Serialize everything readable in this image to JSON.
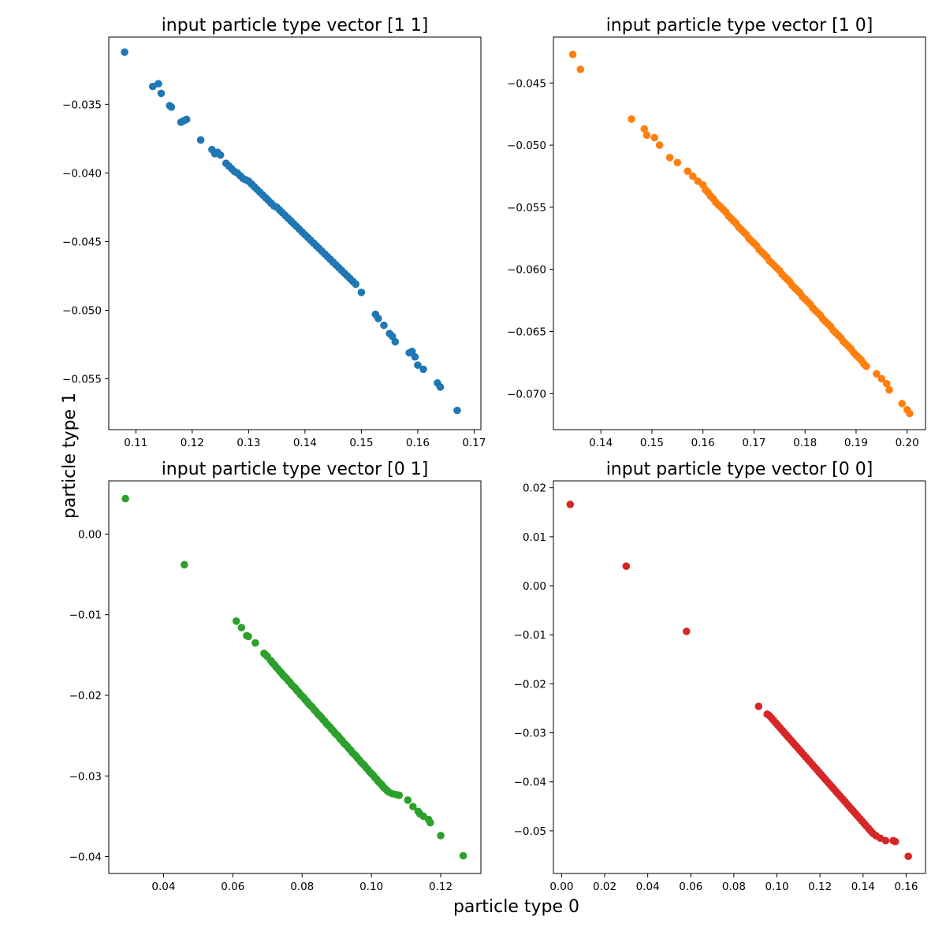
{
  "figure": {
    "xlabel": "particle type 0",
    "ylabel": "particle type 1"
  },
  "chart_data": [
    {
      "type": "scatter",
      "title": "input particle type vector [1 1]",
      "color": "#1f77b4",
      "xlim": [
        0.1052,
        0.1712
      ],
      "ylim": [
        -0.0587,
        -0.0301
      ],
      "xticks": [
        0.11,
        0.12,
        0.13,
        0.14,
        0.15,
        0.16,
        0.17
      ],
      "xtick_labels": [
        "0.11",
        "0.12",
        "0.13",
        "0.14",
        "0.15",
        "0.16",
        "0.17"
      ],
      "yticks": [
        -0.035,
        -0.04,
        -0.045,
        -0.05,
        -0.055
      ],
      "ytick_labels": [
        "−0.035",
        "−0.040",
        "−0.045",
        "−0.050",
        "−0.055"
      ],
      "x": [
        0.108,
        0.113,
        0.114,
        0.1145,
        0.116,
        0.1163,
        0.118,
        0.119,
        0.1185,
        0.1215,
        0.1235,
        0.124,
        0.1245,
        0.125,
        0.126,
        0.1265,
        0.127,
        0.1275,
        0.128,
        0.1285,
        0.129,
        0.1295,
        0.13,
        0.1305,
        0.131,
        0.1315,
        0.132,
        0.1325,
        0.133,
        0.1335,
        0.134,
        0.1345,
        0.135,
        0.1355,
        0.136,
        0.1365,
        0.137,
        0.1375,
        0.138,
        0.1385,
        0.139,
        0.1395,
        0.14,
        0.1405,
        0.141,
        0.1415,
        0.142,
        0.1425,
        0.143,
        0.1435,
        0.144,
        0.1445,
        0.145,
        0.1455,
        0.146,
        0.1465,
        0.147,
        0.1475,
        0.148,
        0.1485,
        0.149,
        0.15,
        0.1525,
        0.153,
        0.154,
        0.155,
        0.1555,
        0.156,
        0.1585,
        0.159,
        0.1595,
        0.16,
        0.161,
        0.1635,
        0.164,
        0.167
      ],
      "y": [
        -0.0312,
        -0.0337,
        -0.0335,
        -0.0342,
        -0.0351,
        -0.0352,
        -0.0363,
        -0.0361,
        -0.0362,
        -0.0376,
        -0.0383,
        -0.0386,
        -0.0385,
        -0.0387,
        -0.0393,
        -0.0395,
        -0.0397,
        -0.0399,
        -0.04,
        -0.0402,
        -0.0404,
        -0.0405,
        -0.0406,
        -0.0408,
        -0.041,
        -0.0412,
        -0.0414,
        -0.0416,
        -0.0418,
        -0.042,
        -0.0422,
        -0.0424,
        -0.0425,
        -0.0427,
        -0.0429,
        -0.0431,
        -0.0433,
        -0.0435,
        -0.0437,
        -0.0439,
        -0.0441,
        -0.0443,
        -0.0445,
        -0.0447,
        -0.0449,
        -0.0451,
        -0.0453,
        -0.0455,
        -0.0457,
        -0.0459,
        -0.0461,
        -0.0463,
        -0.0465,
        -0.0467,
        -0.0469,
        -0.0471,
        -0.0473,
        -0.0475,
        -0.0477,
        -0.0479,
        -0.0481,
        -0.0487,
        -0.0503,
        -0.0506,
        -0.0511,
        -0.0517,
        -0.0519,
        -0.0523,
        -0.0531,
        -0.053,
        -0.0534,
        -0.054,
        -0.0543,
        -0.0553,
        -0.0556,
        -0.0573
      ]
    },
    {
      "type": "scatter",
      "title": "input particle type vector [1 0]",
      "color": "#ff7f0e",
      "xlim": [
        0.1307,
        0.2036
      ],
      "ylim": [
        -0.0729,
        -0.0413
      ],
      "xticks": [
        0.14,
        0.15,
        0.16,
        0.17,
        0.18,
        0.19,
        0.2
      ],
      "xtick_labels": [
        "0.14",
        "0.15",
        "0.16",
        "0.17",
        "0.18",
        "0.19",
        "0.20"
      ],
      "yticks": [
        -0.045,
        -0.05,
        -0.055,
        -0.06,
        -0.065,
        -0.07
      ],
      "ytick_labels": [
        "−0.045",
        "−0.050",
        "−0.055",
        "−0.060",
        "−0.065",
        "−0.070"
      ],
      "x": [
        0.1345,
        0.136,
        0.146,
        0.1485,
        0.149,
        0.1505,
        0.1515,
        0.1535,
        0.155,
        0.157,
        0.158,
        0.159,
        0.16,
        0.1605,
        0.161,
        0.1615,
        0.162,
        0.1625,
        0.163,
        0.1635,
        0.164,
        0.1645,
        0.165,
        0.1655,
        0.166,
        0.1665,
        0.167,
        0.1675,
        0.168,
        0.1685,
        0.169,
        0.1695,
        0.17,
        0.1705,
        0.171,
        0.1715,
        0.172,
        0.1725,
        0.173,
        0.1735,
        0.174,
        0.1745,
        0.175,
        0.1755,
        0.176,
        0.1765,
        0.177,
        0.1775,
        0.178,
        0.1785,
        0.179,
        0.1795,
        0.18,
        0.1805,
        0.181,
        0.1815,
        0.182,
        0.1825,
        0.183,
        0.1835,
        0.184,
        0.1845,
        0.185,
        0.1855,
        0.186,
        0.1865,
        0.187,
        0.1875,
        0.188,
        0.1885,
        0.189,
        0.1895,
        0.19,
        0.1905,
        0.191,
        0.1915,
        0.192,
        0.194,
        0.195,
        0.196,
        0.1965,
        0.199,
        0.2,
        0.2005
      ],
      "y": [
        -0.0427,
        -0.0439,
        -0.0479,
        -0.0487,
        -0.0492,
        -0.0494,
        -0.05,
        -0.051,
        -0.0514,
        -0.0521,
        -0.0525,
        -0.0529,
        -0.0532,
        -0.0536,
        -0.0538,
        -0.0541,
        -0.0543,
        -0.0546,
        -0.0548,
        -0.055,
        -0.0552,
        -0.0554,
        -0.0557,
        -0.0559,
        -0.0561,
        -0.0563,
        -0.0566,
        -0.0568,
        -0.057,
        -0.0572,
        -0.0575,
        -0.0577,
        -0.0579,
        -0.0581,
        -0.0584,
        -0.0586,
        -0.0588,
        -0.059,
        -0.0593,
        -0.0595,
        -0.0597,
        -0.0599,
        -0.0601,
        -0.0604,
        -0.0606,
        -0.0608,
        -0.061,
        -0.0613,
        -0.0615,
        -0.0617,
        -0.0619,
        -0.0622,
        -0.0624,
        -0.0626,
        -0.0628,
        -0.0631,
        -0.0633,
        -0.0635,
        -0.0637,
        -0.064,
        -0.0642,
        -0.0644,
        -0.0646,
        -0.0649,
        -0.0651,
        -0.0653,
        -0.0655,
        -0.0658,
        -0.066,
        -0.0662,
        -0.0664,
        -0.0667,
        -0.0669,
        -0.0671,
        -0.0673,
        -0.0676,
        -0.0678,
        -0.0684,
        -0.0688,
        -0.0692,
        -0.0697,
        -0.0708,
        -0.0713,
        -0.0716
      ]
    },
    {
      "type": "scatter",
      "title": "input particle type vector [0 1]",
      "color": "#2ca02c",
      "xlim": [
        0.0242,
        0.1316
      ],
      "ylim": [
        -0.0421,
        0.0066
      ],
      "xticks": [
        0.04,
        0.06,
        0.08,
        0.1,
        0.12
      ],
      "xtick_labels": [
        "0.04",
        "0.06",
        "0.08",
        "0.10",
        "0.12"
      ],
      "yticks": [
        0.0,
        -0.01,
        -0.02,
        -0.03,
        -0.04
      ],
      "ytick_labels": [
        "0.00",
        "−0.01",
        "−0.02",
        "−0.03",
        "−0.04"
      ],
      "x": [
        0.029,
        0.046,
        0.061,
        0.0625,
        0.064,
        0.0645,
        0.0665,
        0.069,
        0.0695,
        0.07,
        0.071,
        0.0715,
        0.072,
        0.0725,
        0.073,
        0.0735,
        0.074,
        0.0745,
        0.075,
        0.0755,
        0.076,
        0.0765,
        0.077,
        0.0775,
        0.078,
        0.0785,
        0.079,
        0.0795,
        0.08,
        0.0805,
        0.081,
        0.0815,
        0.082,
        0.0825,
        0.083,
        0.0835,
        0.084,
        0.0845,
        0.085,
        0.0855,
        0.086,
        0.0865,
        0.087,
        0.0875,
        0.088,
        0.0885,
        0.089,
        0.0895,
        0.09,
        0.0905,
        0.091,
        0.0915,
        0.092,
        0.0925,
        0.093,
        0.0935,
        0.094,
        0.0945,
        0.095,
        0.0955,
        0.096,
        0.0965,
        0.097,
        0.0975,
        0.098,
        0.0985,
        0.099,
        0.0995,
        0.1,
        0.1005,
        0.101,
        0.1015,
        0.102,
        0.1025,
        0.103,
        0.1035,
        0.104,
        0.1045,
        0.105,
        0.106,
        0.107,
        0.108,
        0.1105,
        0.112,
        0.1135,
        0.114,
        0.115,
        0.1165,
        0.117,
        0.12,
        0.1265
      ],
      "y": [
        0.0044,
        -0.0038,
        -0.0108,
        -0.0116,
        -0.0126,
        -0.0127,
        -0.0135,
        -0.0148,
        -0.015,
        -0.0152,
        -0.0157,
        -0.016,
        -0.0162,
        -0.0165,
        -0.0167,
        -0.017,
        -0.0172,
        -0.0175,
        -0.0177,
        -0.0179,
        -0.0182,
        -0.0184,
        -0.0187,
        -0.0189,
        -0.0191,
        -0.0194,
        -0.0196,
        -0.0199,
        -0.0201,
        -0.0203,
        -0.0206,
        -0.0208,
        -0.0211,
        -0.0213,
        -0.0215,
        -0.0218,
        -0.022,
        -0.0223,
        -0.0225,
        -0.0227,
        -0.023,
        -0.0232,
        -0.0235,
        -0.0237,
        -0.0239,
        -0.0242,
        -0.0244,
        -0.0247,
        -0.0249,
        -0.0251,
        -0.0254,
        -0.0256,
        -0.0259,
        -0.0261,
        -0.0263,
        -0.0266,
        -0.0268,
        -0.0271,
        -0.0273,
        -0.0275,
        -0.0278,
        -0.028,
        -0.0283,
        -0.0285,
        -0.0287,
        -0.029,
        -0.0292,
        -0.0295,
        -0.0297,
        -0.0299,
        -0.0302,
        -0.0304,
        -0.0307,
        -0.0309,
        -0.0311,
        -0.0314,
        -0.0316,
        -0.0318,
        -0.032,
        -0.0322,
        -0.0323,
        -0.0324,
        -0.033,
        -0.0338,
        -0.0344,
        -0.0347,
        -0.035,
        -0.0354,
        -0.0358,
        -0.0374,
        -0.0399
      ]
    },
    {
      "type": "scatter",
      "title": "input particle type vector [0 0]",
      "color": "#d62728",
      "xlim": [
        -0.0038,
        0.169
      ],
      "ylim": [
        -0.0587,
        0.0214
      ],
      "xticks": [
        0.0,
        0.02,
        0.04,
        0.06,
        0.08,
        0.1,
        0.12,
        0.14,
        0.16
      ],
      "xtick_labels": [
        "0.00",
        "0.02",
        "0.04",
        "0.06",
        "0.08",
        "0.10",
        "0.12",
        "0.14",
        "0.16"
      ],
      "yticks": [
        0.02,
        0.01,
        0.0,
        -0.01,
        -0.02,
        -0.03,
        -0.04,
        -0.05
      ],
      "ytick_labels": [
        "0.02",
        "0.01",
        "0.00",
        "−0.01",
        "−0.02",
        "−0.03",
        "−0.04",
        "−0.05"
      ],
      "x": [
        0.004,
        0.03,
        0.058,
        0.0915,
        0.0955,
        0.0965,
        0.0975,
        0.0985,
        0.0995,
        0.1005,
        0.1015,
        0.1025,
        0.1035,
        0.1045,
        0.1055,
        0.1065,
        0.1075,
        0.1085,
        0.1095,
        0.1105,
        0.1115,
        0.1125,
        0.1135,
        0.1145,
        0.1155,
        0.1165,
        0.1175,
        0.1185,
        0.1195,
        0.1205,
        0.1215,
        0.1225,
        0.1235,
        0.1245,
        0.1255,
        0.1265,
        0.1275,
        0.1285,
        0.1295,
        0.1305,
        0.1315,
        0.1325,
        0.1335,
        0.1345,
        0.1355,
        0.1365,
        0.1375,
        0.1385,
        0.1395,
        0.1405,
        0.1415,
        0.1425,
        0.1435,
        0.1445,
        0.146,
        0.148,
        0.1505,
        0.154,
        0.155,
        0.161
      ],
      "y": [
        0.0166,
        0.004,
        -0.0093,
        -0.0246,
        -0.0262,
        -0.0265,
        -0.027,
        -0.0275,
        -0.028,
        -0.0285,
        -0.029,
        -0.0295,
        -0.03,
        -0.0305,
        -0.031,
        -0.0315,
        -0.032,
        -0.0325,
        -0.033,
        -0.0335,
        -0.034,
        -0.0345,
        -0.035,
        -0.0355,
        -0.036,
        -0.0365,
        -0.037,
        -0.0375,
        -0.038,
        -0.0385,
        -0.039,
        -0.0395,
        -0.04,
        -0.0405,
        -0.041,
        -0.0415,
        -0.042,
        -0.0425,
        -0.043,
        -0.0435,
        -0.044,
        -0.0445,
        -0.045,
        -0.0455,
        -0.046,
        -0.0465,
        -0.047,
        -0.0475,
        -0.048,
        -0.0485,
        -0.049,
        -0.0495,
        -0.05,
        -0.0505,
        -0.051,
        -0.0515,
        -0.052,
        -0.052,
        -0.0522,
        -0.0552
      ]
    }
  ]
}
